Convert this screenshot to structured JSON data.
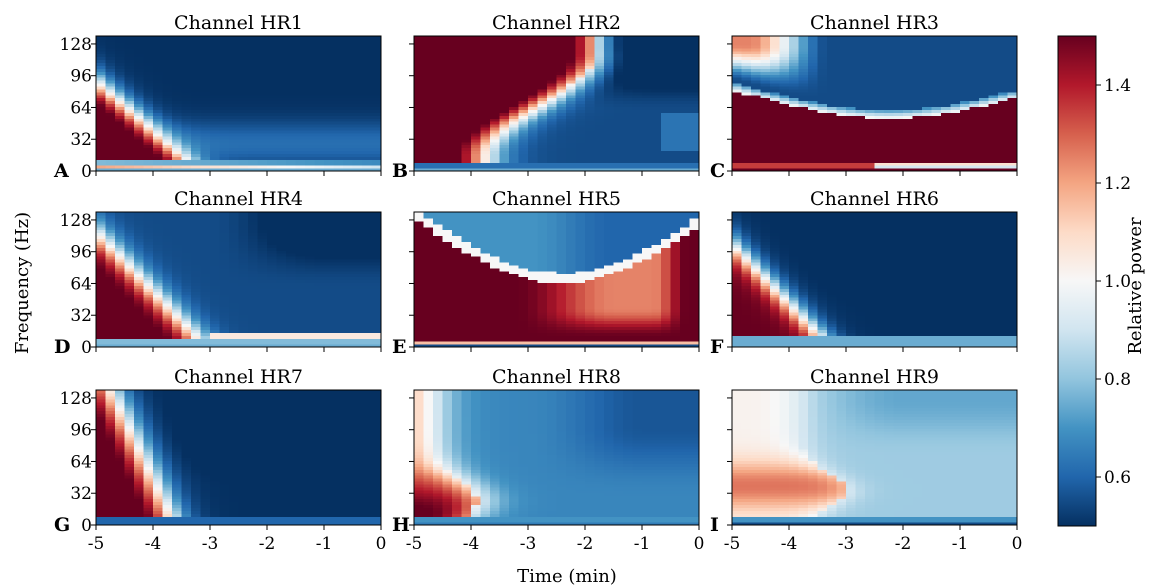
{
  "chart_data": {
    "type": "heatmap",
    "panels": [
      {
        "letter": "A",
        "title": "Channel HR1",
        "profile": "hr1"
      },
      {
        "letter": "B",
        "title": "Channel HR2",
        "profile": "hr2"
      },
      {
        "letter": "C",
        "title": "Channel HR3",
        "profile": "hr3"
      },
      {
        "letter": "D",
        "title": "Channel HR4",
        "profile": "hr4"
      },
      {
        "letter": "E",
        "title": "Channel HR5",
        "profile": "hr5"
      },
      {
        "letter": "F",
        "title": "Channel HR6",
        "profile": "hr6"
      },
      {
        "letter": "G",
        "title": "Channel HR7",
        "profile": "hr7"
      },
      {
        "letter": "H",
        "title": "Channel HR8",
        "profile": "hr8"
      },
      {
        "letter": "I",
        "title": "Channel HR9",
        "profile": "hr9"
      }
    ],
    "xlabel": "Time (min)",
    "ylabel": "Frequency (Hz)",
    "x_ticks": [
      "-5",
      "-4",
      "-3",
      "-2",
      "-1",
      "0"
    ],
    "y_ticks": [
      "0",
      "32",
      "64",
      "96",
      "128"
    ],
    "xlim": [
      -5,
      0
    ],
    "ylim": [
      0,
      136
    ],
    "colorbar": {
      "label": "Relative power",
      "range": [
        0.5,
        1.5
      ],
      "ticks": [
        "0.6",
        "0.8",
        "1.0",
        "1.2",
        "1.4"
      ],
      "colormap": "RdBu_r",
      "colors": [
        "#053061",
        "#2166ac",
        "#4393c3",
        "#92c5de",
        "#d1e5f0",
        "#f7f7f7",
        "#fddbc7",
        "#f4a582",
        "#d6604d",
        "#b2182b",
        "#67001f"
      ]
    },
    "grid": false
  }
}
